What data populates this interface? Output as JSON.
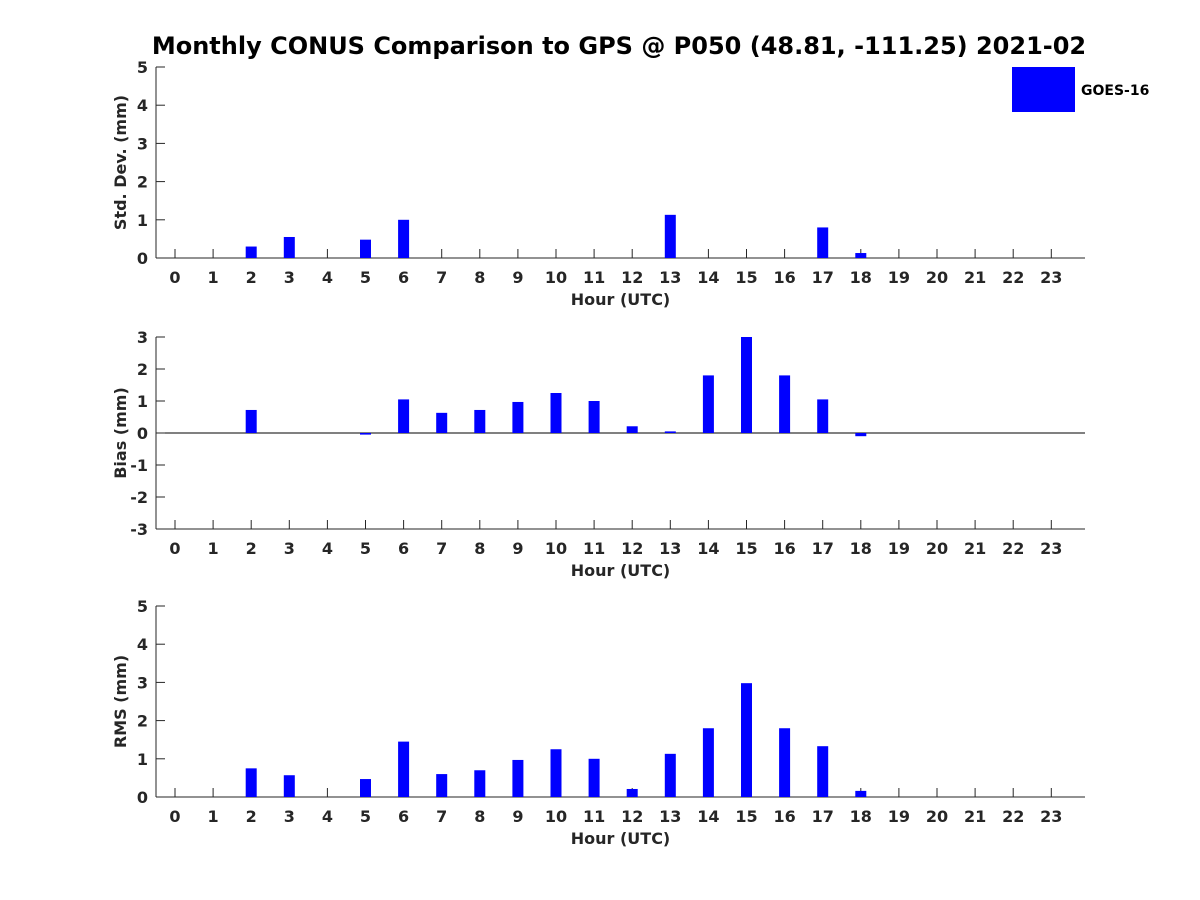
{
  "chart_data": [
    {
      "type": "bar",
      "title": "Monthly CONUS Comparison to GPS @ P050 (48.81, -111.25) 2021-02",
      "xlabel": "Hour (UTC)",
      "ylabel": "Std. Dev. (mm)",
      "ylim": [
        0,
        5
      ],
      "yticks": [
        0,
        1,
        2,
        3,
        4,
        5
      ],
      "categories": [
        "0",
        "1",
        "2",
        "3",
        "4",
        "5",
        "6",
        "7",
        "8",
        "9",
        "10",
        "11",
        "12",
        "13",
        "14",
        "15",
        "16",
        "17",
        "18",
        "19",
        "20",
        "21",
        "22",
        "23"
      ],
      "series": [
        {
          "name": "GOES-16",
          "color": "#0000ff",
          "values": [
            null,
            null,
            0.3,
            0.55,
            null,
            0.48,
            1.0,
            null,
            null,
            null,
            null,
            null,
            null,
            1.13,
            null,
            null,
            null,
            0.8,
            0.13,
            null,
            null,
            null,
            null,
            null
          ]
        }
      ],
      "legend": "top-right",
      "grid": false
    },
    {
      "type": "bar",
      "xlabel": "Hour (UTC)",
      "ylabel": "Bias (mm)",
      "ylim": [
        -3,
        3
      ],
      "yticks": [
        -3,
        -2,
        -1,
        0,
        1,
        2,
        3
      ],
      "zero_line": true,
      "categories": [
        "0",
        "1",
        "2",
        "3",
        "4",
        "5",
        "6",
        "7",
        "8",
        "9",
        "10",
        "11",
        "12",
        "13",
        "14",
        "15",
        "16",
        "17",
        "18",
        "19",
        "20",
        "21",
        "22",
        "23"
      ],
      "series": [
        {
          "name": "GOES-16",
          "color": "#0000ff",
          "values": [
            null,
            null,
            0.72,
            null,
            null,
            -0.05,
            1.05,
            0.63,
            0.72,
            0.97,
            1.25,
            1.0,
            0.21,
            0.05,
            1.8,
            3.0,
            1.8,
            1.05,
            -0.1,
            null,
            null,
            null,
            null,
            null
          ]
        }
      ],
      "grid": false
    },
    {
      "type": "bar",
      "xlabel": "Hour (UTC)",
      "ylabel": "RMS (mm)",
      "ylim": [
        0,
        5
      ],
      "yticks": [
        0,
        1,
        2,
        3,
        4,
        5
      ],
      "categories": [
        "0",
        "1",
        "2",
        "3",
        "4",
        "5",
        "6",
        "7",
        "8",
        "9",
        "10",
        "11",
        "12",
        "13",
        "14",
        "15",
        "16",
        "17",
        "18",
        "19",
        "20",
        "21",
        "22",
        "23"
      ],
      "series": [
        {
          "name": "GOES-16",
          "color": "#0000ff",
          "values": [
            null,
            null,
            0.75,
            0.57,
            null,
            0.47,
            1.45,
            0.6,
            0.7,
            0.97,
            1.25,
            1.0,
            0.21,
            1.13,
            1.8,
            2.98,
            1.8,
            1.33,
            0.16,
            null,
            null,
            null,
            null,
            null
          ]
        }
      ],
      "grid": false
    }
  ]
}
